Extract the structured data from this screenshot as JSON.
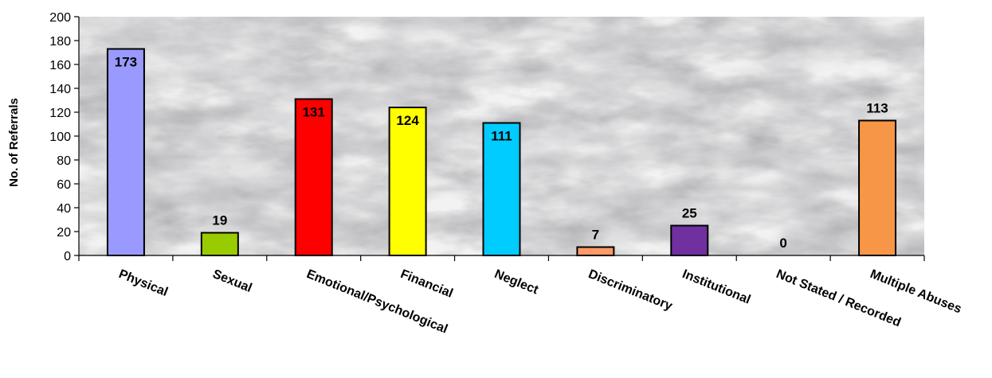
{
  "chart_data": {
    "type": "bar",
    "title": "",
    "xlabel": "",
    "ylabel": "No. of Referrals",
    "ylim": [
      0,
      200
    ],
    "yticks": [
      0,
      20,
      40,
      60,
      80,
      100,
      120,
      140,
      160,
      180,
      200
    ],
    "categories": [
      "Physical",
      "Sexual",
      "Emotional/Psychological",
      "Financial",
      "Neglect",
      "Discriminatory",
      "Institutional",
      "Not Stated / Recorded",
      "Multiple Abuses"
    ],
    "values": [
      173,
      19,
      131,
      124,
      111,
      7,
      25,
      0,
      113
    ],
    "data_labels": [
      "173",
      "19",
      "131",
      "124",
      "111",
      "7",
      "25",
      "0",
      "113"
    ],
    "colors": [
      "#9999ff",
      "#99cc00",
      "#ff0000",
      "#ffff00",
      "#00ccff",
      "#ff9966",
      "#7030a0",
      "#cccccc",
      "#f79646"
    ],
    "background": "marble-texture",
    "grid": false,
    "legend": "none"
  }
}
